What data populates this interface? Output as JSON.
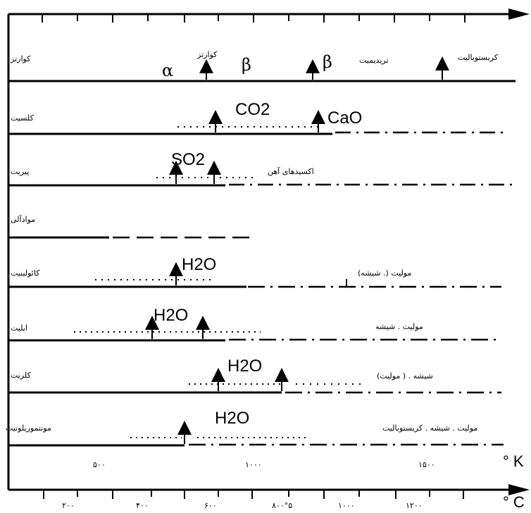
{
  "rows": [
    {
      "mineral": "کوارتز",
      "extra": [
        "کوارتز",
        "تریدیمیت",
        "کریستوبالیت"
      ]
    },
    {
      "mineral": "کلسیت",
      "gas": "CO2",
      "product": "CaO"
    },
    {
      "mineral": "پیریت",
      "gas": "SO2",
      "product": "اکسیدهای آهن"
    },
    {
      "mineral": "موادآلی"
    },
    {
      "mineral": "کائولینیت",
      "gas": "H2O",
      "product": "مولیت (. شیشه)"
    },
    {
      "mineral": "ایلیت",
      "gas": "H2O",
      "product": "مولیت . شیشه"
    },
    {
      "mineral": "کلریت",
      "gas": "H2O",
      "product": "شیشه . ( مولیت)"
    },
    {
      "mineral": "مونتموریلونیت",
      "gas": "H2O",
      "product": "مولیت . شیشه . کریستوبالیت"
    }
  ],
  "quartz": {
    "alpha": "α",
    "beta1": "β",
    "beta2": "β"
  },
  "kelvin_axis": {
    "unit": "° K",
    "labels": [
      "۵۰۰",
      "۱۰۰۰",
      "۱۵۰۰"
    ]
  },
  "celsius_axis": {
    "unit": "° C",
    "labels": [
      "۲۰۰",
      "۴۰۰",
      "۶۰۰",
      "۸۰۰°۵",
      "۱۰۰۰",
      "۱۲۰۰"
    ]
  }
}
